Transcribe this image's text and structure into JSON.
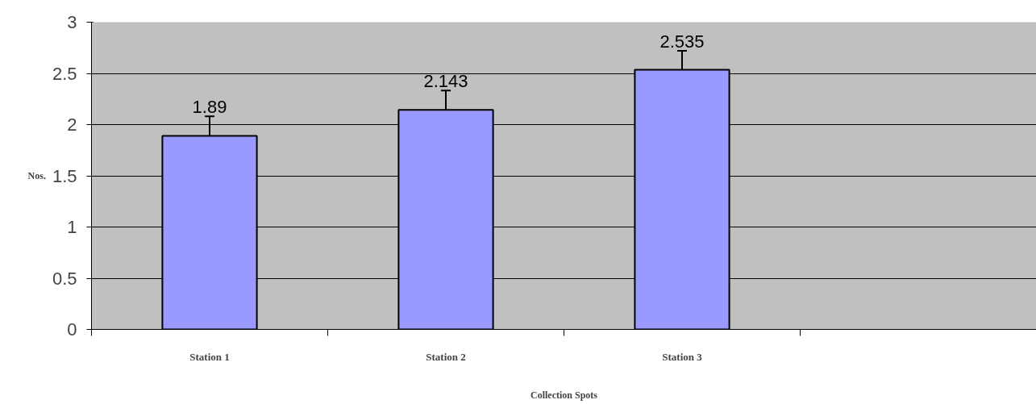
{
  "chart_data": {
    "type": "bar",
    "xlabel": "Collection Spots",
    "ylabel": "Nos.",
    "categories": [
      "Station 1",
      "Station 2",
      "Station 3",
      null
    ],
    "values": [
      1.89,
      2.143,
      2.535,
      null
    ],
    "errors": [
      0.19,
      0.19,
      0.185,
      null
    ],
    "color": "#9999ff",
    "data_labels": true,
    "grid": "y",
    "ylim": [
      0,
      3
    ],
    "yticks": [
      0,
      0.5,
      1,
      1.5,
      2,
      2.5,
      3
    ]
  }
}
